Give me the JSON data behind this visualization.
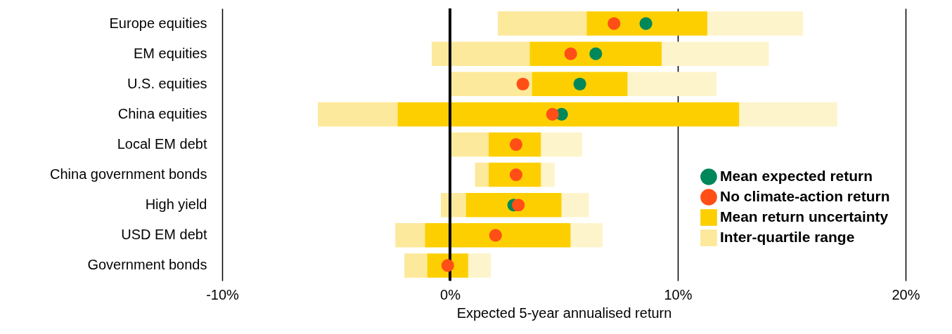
{
  "chart_data": {
    "type": "bar",
    "orientation": "horizontal",
    "xlabel": "Expected 5-year annualised return",
    "categories": [
      "Europe equities",
      "EM equities",
      "U.S. equities",
      "China equities",
      "Local EM debt",
      "China government bonds",
      "High yield",
      "USD EM debt",
      "Government bonds"
    ],
    "series": [
      {
        "name": "Inter-quartile range",
        "color": "#fde99b",
        "base": [
          2.1,
          -0.8,
          0,
          -5.8,
          0,
          1.1,
          -0.4,
          -2.4,
          -2.0
        ],
        "values": [
          3.9,
          4.3,
          3.6,
          3.5,
          1.7,
          0.6,
          1.1,
          1.3,
          1.0
        ]
      },
      {
        "name": "Mean return uncertainty",
        "color": "#fdcf00",
        "base": [
          6.0,
          3.5,
          3.6,
          -2.3,
          1.7,
          1.7,
          0.7,
          -1.1,
          -1.0
        ],
        "values": [
          5.3,
          5.8,
          4.2,
          15.0,
          2.3,
          2.3,
          4.2,
          6.4,
          1.8
        ]
      },
      {
        "color": "#fef4cc",
        "base": [
          11.3,
          9.3,
          7.8,
          12.7,
          4.0,
          4.0,
          4.9,
          5.3,
          0.8
        ],
        "values": [
          4.2,
          4.7,
          3.9,
          4.3,
          1.8,
          0.6,
          1.2,
          1.4,
          1.0
        ]
      },
      {
        "type": "scatter",
        "name": "Mean expected return",
        "color": "#00875a",
        "x": [
          "Europe equities",
          "EM equities",
          "U.S. equities",
          "China equities",
          "Local EM debt",
          "China government bonds",
          "High yield",
          "USD EM debt",
          "Government bonds"
        ],
        "values": [
          8.6,
          6.4,
          5.7,
          4.9,
          null,
          null,
          2.8,
          null,
          null
        ]
      },
      {
        "type": "scatter",
        "name": "No climate-action return",
        "color": "#ff4f17",
        "x": [
          "Europe equities",
          "EM equities",
          "U.S. equities",
          "China equities",
          "Local EM debt",
          "China government bonds",
          "High yield",
          "USD EM debt",
          "Government bonds"
        ],
        "values": [
          7.2,
          5.3,
          3.2,
          4.5,
          2.9,
          2.9,
          3.0,
          2.0,
          -0.1
        ]
      }
    ],
    "xlim": [
      -10,
      20
    ],
    "xticks": [
      {
        "value": -10,
        "label": "-10%"
      },
      {
        "value": 0,
        "label": "0%"
      },
      {
        "value": 10,
        "label": "10%"
      },
      {
        "value": 20,
        "label": "20%"
      }
    ],
    "ref_lines": [
      {
        "axis": "x",
        "value": 0,
        "color": "#000000"
      }
    ],
    "grid": "x",
    "legend": "right",
    "marker": "circle"
  }
}
